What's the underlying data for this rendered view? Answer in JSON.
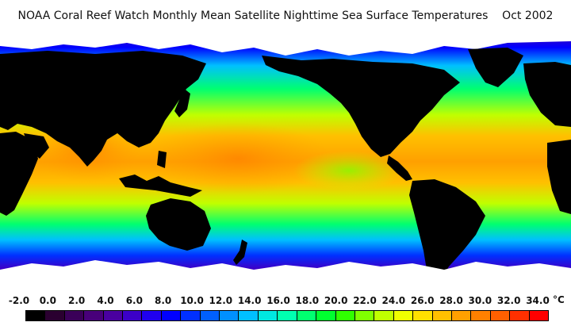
{
  "title": "NOAA Coral Reef Watch Monthly Mean Satellite Nighttime Sea Surface Temperatures    Oct 2002",
  "legend": {
    "unit": "°C",
    "tick_labels": [
      "-2.0",
      "0.0",
      "2.0",
      "4.0",
      "6.0",
      "8.0",
      "10.0",
      "12.0",
      "14.0",
      "16.0",
      "18.0",
      "20.0",
      "22.0",
      "24.0",
      "26.0",
      "28.0",
      "30.0",
      "32.0",
      "34.0"
    ],
    "colors": [
      "#000000",
      "#2a0030",
      "#3a0058",
      "#48007a",
      "#4a00a0",
      "#3c00c8",
      "#2000f0",
      "#0000ff",
      "#0030ff",
      "#0060ff",
      "#0090ff",
      "#00c0ff",
      "#00e8e0",
      "#00ffb0",
      "#00ff70",
      "#00ff30",
      "#30ff00",
      "#80ff00",
      "#c0ff00",
      "#f0ff00",
      "#ffe000",
      "#ffc000",
      "#ffa000",
      "#ff8000",
      "#ff6000",
      "#ff3000",
      "#ff0000"
    ]
  },
  "map_colors": {
    "land": "#000000",
    "ice": "#ffffff"
  }
}
